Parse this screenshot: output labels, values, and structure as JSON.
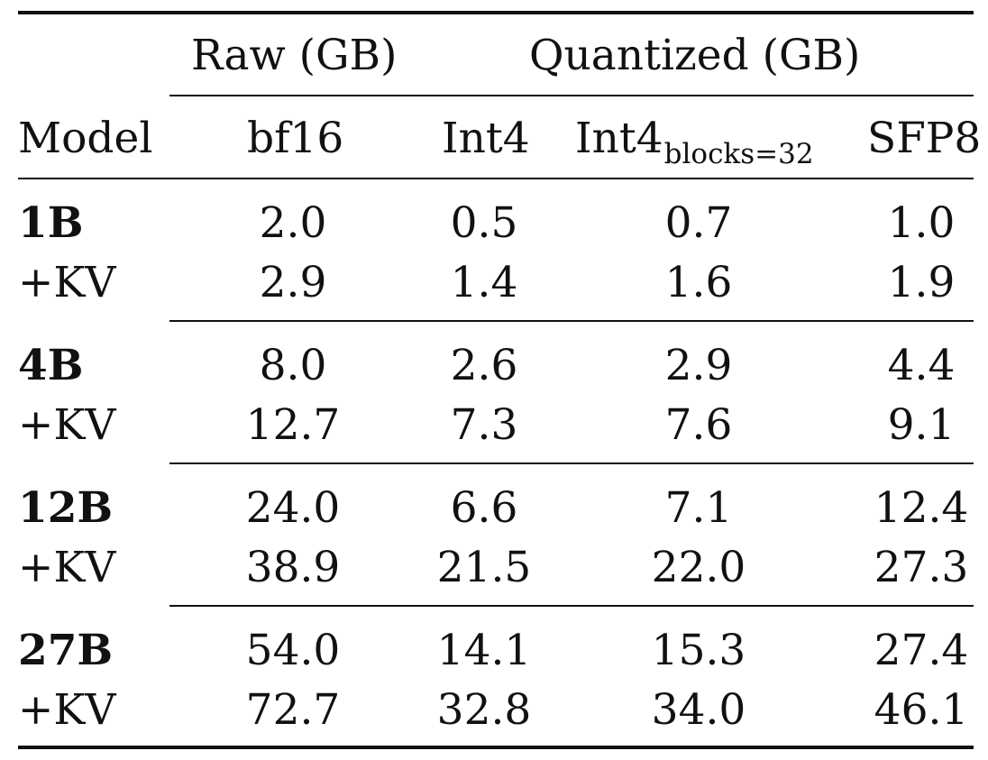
{
  "table": {
    "group_headers": {
      "raw": "Raw (GB)",
      "quantized": "Quantized (GB)"
    },
    "columns": {
      "model": "Model",
      "bf16": "bf16",
      "int4": "Int4",
      "int4_blocks_main": "Int4",
      "int4_blocks_sub": "blocks=32",
      "sfp8": "SFP8"
    },
    "rows": [
      {
        "model": "1B",
        "bf16": "2.0",
        "int4": "0.5",
        "int4_blocks": "0.7",
        "sfp8": "1.0"
      },
      {
        "model": "+KV",
        "bf16": "2.9",
        "int4": "1.4",
        "int4_blocks": "1.6",
        "sfp8": "1.9"
      },
      {
        "model": "4B",
        "bf16": "8.0",
        "int4": "2.6",
        "int4_blocks": "2.9",
        "sfp8": "4.4"
      },
      {
        "model": "+KV",
        "bf16": "12.7",
        "int4": "7.3",
        "int4_blocks": "7.6",
        "sfp8": "9.1"
      },
      {
        "model": "12B",
        "bf16": "24.0",
        "int4": "6.6",
        "int4_blocks": "7.1",
        "sfp8": "12.4"
      },
      {
        "model": "+KV",
        "bf16": "38.9",
        "int4": "21.5",
        "int4_blocks": "22.0",
        "sfp8": "27.3"
      },
      {
        "model": "27B",
        "bf16": "54.0",
        "int4": "14.1",
        "int4_blocks": "15.3",
        "sfp8": "27.4"
      },
      {
        "model": "+KV",
        "bf16": "72.7",
        "int4": "32.8",
        "int4_blocks": "34.0",
        "sfp8": "46.1"
      }
    ]
  }
}
